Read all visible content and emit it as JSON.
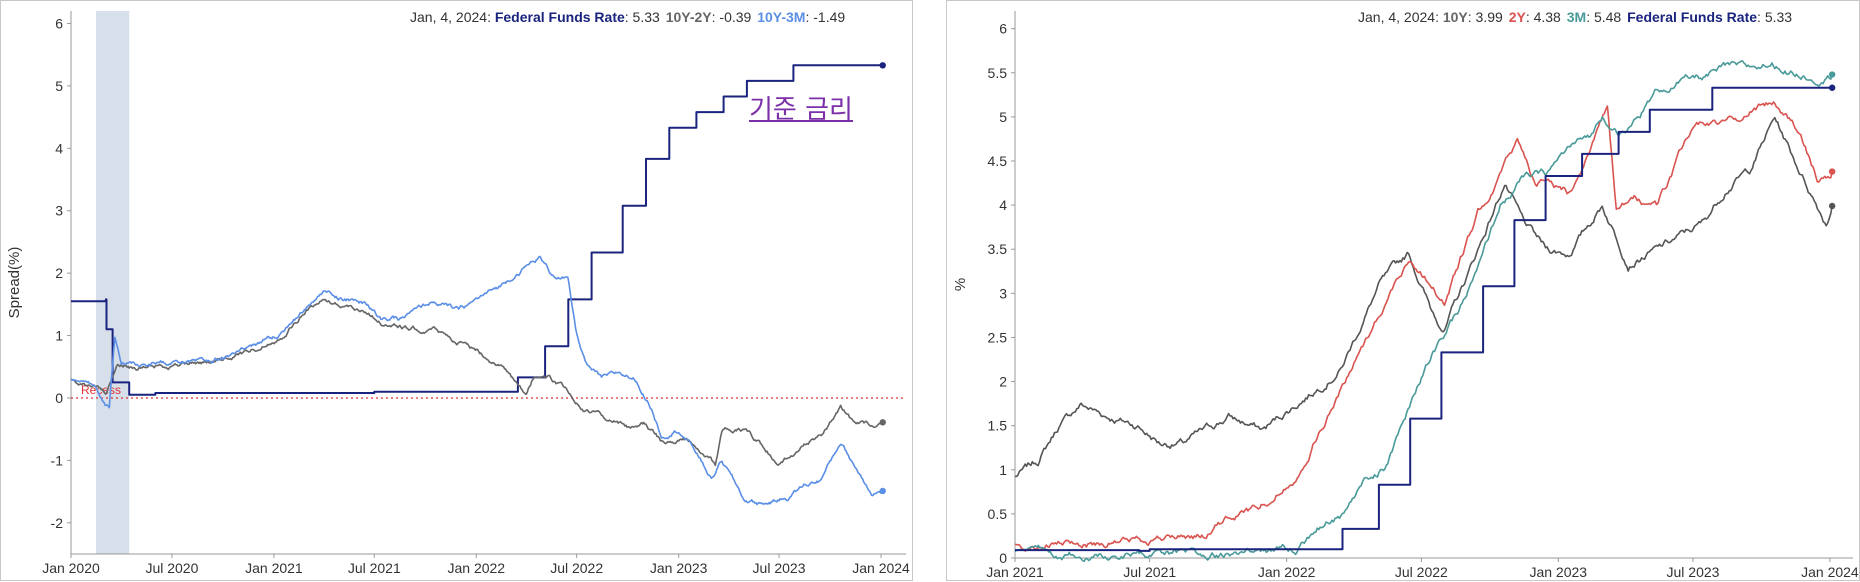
{
  "chart_data": [
    {
      "type": "line",
      "ylabel": "Spread(%)",
      "xlabel": "",
      "ylim": [
        -2.5,
        6.2
      ],
      "x_range": [
        "2020-01-01",
        "2024-02-15"
      ],
      "x_ticks": [
        "Jan 2020",
        "Jul 2020",
        "Jan 2021",
        "Jul 2021",
        "Jan 2022",
        "Jul 2022",
        "Jan 2023",
        "Jul 2023",
        "Jan 2024"
      ],
      "y_ticks": [
        "-2",
        "-1",
        "0",
        "1",
        "2",
        "3",
        "4",
        "5",
        "6"
      ],
      "reference_line": {
        "y": 0,
        "label": "Recess",
        "color": "#e03030"
      },
      "recession_band": [
        "2020-02-15",
        "2020-04-15"
      ],
      "annotation": {
        "text": "기준 금리",
        "color": "#7b2fa8"
      },
      "legend": {
        "date": "Jan, 4, 2024",
        "items": [
          {
            "name": "Federal Funds Rate",
            "value": "5.33",
            "color": "#1a237e"
          },
          {
            "name": "10Y-2Y",
            "value": "-0.39",
            "color": "#666666"
          },
          {
            "name": "10Y-3M",
            "value": "-1.49",
            "color": "#5b8fe6"
          }
        ]
      },
      "series": [
        {
          "name": "Federal Funds Rate",
          "color": "#1a237e",
          "step": true,
          "points": [
            [
              "2020-01-01",
              1.55
            ],
            [
              "2020-03-04",
              1.58
            ],
            [
              "2020-03-05",
              1.1
            ],
            [
              "2020-03-16",
              0.25
            ],
            [
              "2020-04-15",
              0.05
            ],
            [
              "2020-06-01",
              0.08
            ],
            [
              "2021-06-17",
              0.08
            ],
            [
              "2021-07-01",
              0.1
            ],
            [
              "2022-03-17",
              0.33
            ],
            [
              "2022-05-05",
              0.83
            ],
            [
              "2022-06-16",
              1.58
            ],
            [
              "2022-07-28",
              2.33
            ],
            [
              "2022-09-22",
              3.08
            ],
            [
              "2022-11-03",
              3.83
            ],
            [
              "2022-12-15",
              4.33
            ],
            [
              "2023-02-02",
              4.58
            ],
            [
              "2023-03-23",
              4.83
            ],
            [
              "2023-05-04",
              5.08
            ],
            [
              "2023-07-27",
              5.33
            ],
            [
              "2024-01-04",
              5.33
            ]
          ]
        },
        {
          "name": "10Y-2Y",
          "color": "#666666",
          "step": false,
          "points": [
            [
              "2020-01-01",
              0.28
            ],
            [
              "2020-02-15",
              0.2
            ],
            [
              "2020-03-05",
              0.05
            ],
            [
              "2020-03-25",
              0.55
            ],
            [
              "2020-04-15",
              0.5
            ],
            [
              "2020-06-01",
              0.5
            ],
            [
              "2020-08-01",
              0.55
            ],
            [
              "2020-10-01",
              0.6
            ],
            [
              "2020-12-01",
              0.8
            ],
            [
              "2021-01-15",
              1.0
            ],
            [
              "2021-03-01",
              1.4
            ],
            [
              "2021-03-31",
              1.58
            ],
            [
              "2021-05-01",
              1.5
            ],
            [
              "2021-06-15",
              1.4
            ],
            [
              "2021-07-15",
              1.2
            ],
            [
              "2021-09-01",
              1.1
            ],
            [
              "2021-10-15",
              1.1
            ],
            [
              "2021-12-01",
              0.9
            ],
            [
              "2022-01-15",
              0.7
            ],
            [
              "2022-02-15",
              0.5
            ],
            [
              "2022-03-15",
              0.2
            ],
            [
              "2022-04-01",
              0.0
            ],
            [
              "2022-04-15",
              0.35
            ],
            [
              "2022-05-15",
              0.3
            ],
            [
              "2022-06-15",
              0.1
            ],
            [
              "2022-07-15",
              -0.2
            ],
            [
              "2022-08-15",
              -0.3
            ],
            [
              "2022-09-30",
              -0.45
            ],
            [
              "2022-10-30",
              -0.4
            ],
            [
              "2022-12-01",
              -0.7
            ],
            [
              "2023-01-15",
              -0.65
            ],
            [
              "2023-03-08",
              -1.05
            ],
            [
              "2023-03-20",
              -0.5
            ],
            [
              "2023-05-01",
              -0.5
            ],
            [
              "2023-07-03",
              -1.05
            ],
            [
              "2023-08-15",
              -0.75
            ],
            [
              "2023-09-15",
              -0.6
            ],
            [
              "2023-10-20",
              -0.15
            ],
            [
              "2023-11-15",
              -0.4
            ],
            [
              "2023-12-15",
              -0.45
            ],
            [
              "2024-01-04",
              -0.39
            ]
          ]
        },
        {
          "name": "10Y-3M",
          "color": "#5b8fe6",
          "step": false,
          "points": [
            [
              "2020-01-01",
              0.3
            ],
            [
              "2020-02-15",
              0.15
            ],
            [
              "2020-03-01",
              -0.05
            ],
            [
              "2020-03-10",
              -0.15
            ],
            [
              "2020-03-20",
              1.0
            ],
            [
              "2020-04-01",
              0.6
            ],
            [
              "2020-05-01",
              0.55
            ],
            [
              "2020-06-01",
              0.55
            ],
            [
              "2020-08-01",
              0.55
            ],
            [
              "2020-10-01",
              0.65
            ],
            [
              "2020-12-01",
              0.85
            ],
            [
              "2021-01-15",
              1.05
            ],
            [
              "2021-03-01",
              1.45
            ],
            [
              "2021-03-31",
              1.7
            ],
            [
              "2021-05-01",
              1.6
            ],
            [
              "2021-06-15",
              1.5
            ],
            [
              "2021-07-15",
              1.25
            ],
            [
              "2021-08-15",
              1.25
            ],
            [
              "2021-10-15",
              1.55
            ],
            [
              "2021-11-30",
              1.4
            ],
            [
              "2022-01-15",
              1.65
            ],
            [
              "2022-02-15",
              1.8
            ],
            [
              "2022-03-15",
              2.0
            ],
            [
              "2022-04-25",
              2.25
            ],
            [
              "2022-05-15",
              2.0
            ],
            [
              "2022-06-15",
              1.9
            ],
            [
              "2022-07-01",
              1.0
            ],
            [
              "2022-07-20",
              0.5
            ],
            [
              "2022-08-15",
              0.3
            ],
            [
              "2022-09-15",
              0.4
            ],
            [
              "2022-10-15",
              0.3
            ],
            [
              "2022-11-15",
              -0.2
            ],
            [
              "2022-12-01",
              -0.6
            ],
            [
              "2023-01-01",
              -0.5
            ],
            [
              "2023-02-01",
              -0.85
            ],
            [
              "2023-03-01",
              -1.3
            ],
            [
              "2023-03-20",
              -1.0
            ],
            [
              "2023-05-01",
              -1.65
            ],
            [
              "2023-06-01",
              -1.7
            ],
            [
              "2023-07-15",
              -1.6
            ],
            [
              "2023-08-15",
              -1.4
            ],
            [
              "2023-09-15",
              -1.3
            ],
            [
              "2023-10-20",
              -0.7
            ],
            [
              "2023-11-15",
              -1.1
            ],
            [
              "2023-12-15",
              -1.5
            ],
            [
              "2024-01-04",
              -1.49
            ]
          ]
        }
      ]
    },
    {
      "type": "line",
      "ylabel": "%",
      "xlabel": "",
      "ylim": [
        0,
        6.2
      ],
      "x_range": [
        "2021-01-01",
        "2024-02-01"
      ],
      "x_ticks": [
        "Jan 2021",
        "Jul 2021",
        "Jan 2022",
        "Jul 2022",
        "Jan 2023",
        "Jul 2023",
        "Jan 2024"
      ],
      "y_ticks": [
        "0",
        "0.5",
        "1",
        "1.5",
        "2",
        "2.5",
        "3",
        "3.5",
        "4",
        "4.5",
        "5",
        "5.5",
        "6"
      ],
      "legend": {
        "date": "Jan, 4, 2024",
        "items": [
          {
            "name": "10Y",
            "value": "3.99",
            "color": "#666666"
          },
          {
            "name": "2Y",
            "value": "4.38",
            "color": "#d9534f"
          },
          {
            "name": "3M",
            "value": "5.48",
            "color": "#4a9a9a"
          },
          {
            "name": "Federal Funds Rate",
            "value": "5.33",
            "color": "#1a237e"
          }
        ]
      },
      "series": [
        {
          "name": "10Y",
          "color": "#555555",
          "step": false,
          "points": [
            [
              "2021-01-01",
              0.92
            ],
            [
              "2021-02-01",
              1.1
            ],
            [
              "2021-03-01",
              1.5
            ],
            [
              "2021-03-31",
              1.74
            ],
            [
              "2021-05-01",
              1.62
            ],
            [
              "2021-06-15",
              1.5
            ],
            [
              "2021-07-15",
              1.3
            ],
            [
              "2021-08-15",
              1.3
            ],
            [
              "2021-10-15",
              1.6
            ],
            [
              "2021-11-30",
              1.45
            ],
            [
              "2022-01-15",
              1.75
            ],
            [
              "2022-02-15",
              1.95
            ],
            [
              "2022-03-15",
              2.15
            ],
            [
              "2022-05-06",
              3.1
            ],
            [
              "2022-06-14",
              3.45
            ],
            [
              "2022-07-15",
              2.8
            ],
            [
              "2022-08-01",
              2.6
            ],
            [
              "2022-09-01",
              3.2
            ],
            [
              "2022-10-21",
              4.25
            ],
            [
              "2022-11-15",
              3.8
            ],
            [
              "2022-12-15",
              3.5
            ],
            [
              "2023-01-15",
              3.45
            ],
            [
              "2023-03-01",
              4.0
            ],
            [
              "2023-04-05",
              3.35
            ],
            [
              "2023-05-15",
              3.5
            ],
            [
              "2023-07-15",
              3.8
            ],
            [
              "2023-08-15",
              4.2
            ],
            [
              "2023-09-15",
              4.4
            ],
            [
              "2023-10-19",
              4.99
            ],
            [
              "2023-11-15",
              4.5
            ],
            [
              "2023-12-27",
              3.8
            ],
            [
              "2024-01-04",
              3.99
            ]
          ]
        },
        {
          "name": "2Y",
          "color": "#d9534f",
          "step": false,
          "points": [
            [
              "2021-01-01",
              0.13
            ],
            [
              "2021-04-01",
              0.16
            ],
            [
              "2021-07-01",
              0.22
            ],
            [
              "2021-09-15",
              0.25
            ],
            [
              "2021-10-15",
              0.45
            ],
            [
              "2021-11-30",
              0.6
            ],
            [
              "2022-01-15",
              0.95
            ],
            [
              "2022-02-15",
              1.45
            ],
            [
              "2022-03-15",
              1.9
            ],
            [
              "2022-04-15",
              2.45
            ],
            [
              "2022-06-14",
              3.4
            ],
            [
              "2022-07-15",
              3.1
            ],
            [
              "2022-08-01",
              2.9
            ],
            [
              "2022-09-15",
              3.9
            ],
            [
              "2022-11-07",
              4.72
            ],
            [
              "2022-12-01",
              4.3
            ],
            [
              "2023-01-15",
              4.15
            ],
            [
              "2023-03-08",
              5.07
            ],
            [
              "2023-03-20",
              3.9
            ],
            [
              "2023-04-15",
              4.05
            ],
            [
              "2023-05-15",
              4.0
            ],
            [
              "2023-07-06",
              4.98
            ],
            [
              "2023-08-15",
              4.9
            ],
            [
              "2023-10-17",
              5.2
            ],
            [
              "2023-11-15",
              4.9
            ],
            [
              "2023-12-15",
              4.3
            ],
            [
              "2024-01-04",
              4.38
            ]
          ]
        },
        {
          "name": "3M",
          "color": "#4a9a9a",
          "step": false,
          "points": [
            [
              "2021-01-01",
              0.09
            ],
            [
              "2021-03-01",
              0.04
            ],
            [
              "2021-06-01",
              0.03
            ],
            [
              "2021-09-01",
              0.04
            ],
            [
              "2021-12-01",
              0.06
            ],
            [
              "2022-01-15",
              0.12
            ],
            [
              "2022-02-15",
              0.35
            ],
            [
              "2022-03-15",
              0.48
            ],
            [
              "2022-04-15",
              0.85
            ],
            [
              "2022-05-15",
              1.05
            ],
            [
              "2022-06-15",
              1.7
            ],
            [
              "2022-07-15",
              2.3
            ],
            [
              "2022-08-15",
              2.7
            ],
            [
              "2022-09-15",
              3.25
            ],
            [
              "2022-10-15",
              4.0
            ],
            [
              "2022-11-15",
              4.3
            ],
            [
              "2022-12-15",
              4.35
            ],
            [
              "2023-01-15",
              4.65
            ],
            [
              "2023-02-15",
              4.8
            ],
            [
              "2023-03-01",
              5.0
            ],
            [
              "2023-04-01",
              4.8
            ],
            [
              "2023-05-15",
              5.3
            ],
            [
              "2023-06-15",
              5.4
            ],
            [
              "2023-07-15",
              5.45
            ],
            [
              "2023-08-15",
              5.55
            ],
            [
              "2023-09-15",
              5.55
            ],
            [
              "2023-10-15",
              5.6
            ],
            [
              "2023-11-15",
              5.5
            ],
            [
              "2023-12-15",
              5.45
            ],
            [
              "2024-01-04",
              5.48
            ]
          ]
        },
        {
          "name": "Federal Funds Rate",
          "color": "#1a237e",
          "step": true,
          "points": [
            [
              "2021-01-01",
              0.09
            ],
            [
              "2021-06-17",
              0.08
            ],
            [
              "2021-07-01",
              0.1
            ],
            [
              "2022-03-17",
              0.33
            ],
            [
              "2022-05-05",
              0.83
            ],
            [
              "2022-06-16",
              1.58
            ],
            [
              "2022-07-28",
              2.33
            ],
            [
              "2022-09-22",
              3.08
            ],
            [
              "2022-11-03",
              3.83
            ],
            [
              "2022-12-15",
              4.33
            ],
            [
              "2023-02-02",
              4.58
            ],
            [
              "2023-03-23",
              4.83
            ],
            [
              "2023-05-04",
              5.08
            ],
            [
              "2023-07-27",
              5.33
            ],
            [
              "2024-01-04",
              5.33
            ]
          ]
        }
      ]
    }
  ]
}
